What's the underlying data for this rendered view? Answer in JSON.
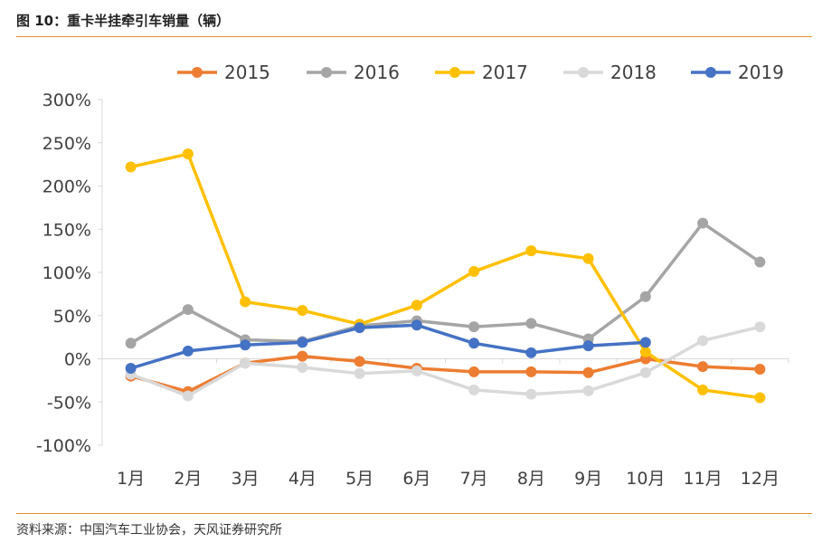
{
  "figure": {
    "title": "图 10：重卡半挂牵引车销量（辆）",
    "source": "资料来源：中国汽车工业协会，天风证券研究所"
  },
  "chart_data": {
    "type": "line",
    "categories": [
      "1月",
      "2月",
      "3月",
      "4月",
      "5月",
      "6月",
      "7月",
      "8月",
      "9月",
      "10月",
      "11月",
      "12月"
    ],
    "y_ticks": [
      "300%",
      "250%",
      "200%",
      "150%",
      "100%",
      "50%",
      "0%",
      "-50%",
      "-100%"
    ],
    "ylim": [
      -100,
      300
    ],
    "y_unit": "%",
    "legend_position": "top",
    "grid": false,
    "series": [
      {
        "name": "2015",
        "color": "#ed7d31",
        "values": [
          -20,
          -38,
          -5,
          3,
          -3,
          -11,
          -15,
          -15,
          -16,
          0,
          -9,
          -12
        ]
      },
      {
        "name": "2016",
        "color": "#a5a5a5",
        "values": [
          18,
          57,
          22,
          20,
          38,
          44,
          37,
          41,
          23,
          72,
          157,
          112
        ]
      },
      {
        "name": "2017",
        "color": "#ffc000",
        "values": [
          222,
          237,
          66,
          56,
          40,
          62,
          101,
          125,
          116,
          8,
          -36,
          -45
        ]
      },
      {
        "name": "2018",
        "color": "#d9d9d9",
        "values": [
          -18,
          -43,
          -5,
          -10,
          -17,
          -14,
          -36,
          -41,
          -37,
          -16,
          21,
          37
        ]
      },
      {
        "name": "2019",
        "color": "#4472c4",
        "values": [
          -11,
          9,
          16,
          19,
          36,
          39,
          18,
          7,
          15,
          19,
          null,
          null
        ]
      }
    ]
  }
}
